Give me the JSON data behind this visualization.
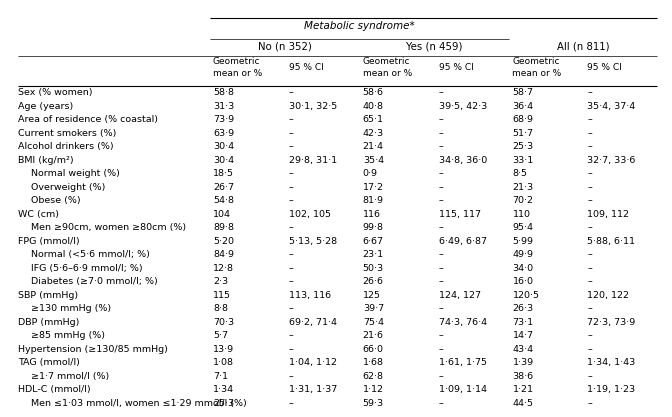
{
  "title": "Metabolic syndrome*",
  "group_labels": [
    "No (​n 352)",
    "Yes (​n 459)",
    "All (​n 811)"
  ],
  "rows": [
    {
      "label": "Sex (% women)",
      "indent": 0,
      "vals": [
        "58·8",
        "–",
        "58·6",
        "–",
        "58·7",
        "–"
      ]
    },
    {
      "label": "Age (years)",
      "indent": 0,
      "vals": [
        "31·3",
        "30·1, 32·5",
        "40·8",
        "39·5, 42·3",
        "36·4",
        "35·4, 37·4"
      ]
    },
    {
      "label": "Area of residence (% coastal)",
      "indent": 0,
      "vals": [
        "73·9",
        "–",
        "65·1",
        "–",
        "68·9",
        "–"
      ]
    },
    {
      "label": "Current smokers (%)",
      "indent": 0,
      "vals": [
        "63·9",
        "–",
        "42·3",
        "–",
        "51·7",
        "–"
      ]
    },
    {
      "label": "Alcohol drinkers (%)",
      "indent": 0,
      "vals": [
        "30·4",
        "–",
        "21·4",
        "–",
        "25·3",
        "–"
      ]
    },
    {
      "label": "BMI (kg/m²)",
      "indent": 0,
      "vals": [
        "30·4",
        "29·8, 31·1",
        "35·4",
        "34·8, 36·0",
        "33·1",
        "32·7, 33·6"
      ]
    },
    {
      "label": "Normal weight (%)",
      "indent": 1,
      "vals": [
        "18·5",
        "–",
        "0·9",
        "–",
        "8·5",
        "–"
      ]
    },
    {
      "label": "Overweight (%)",
      "indent": 1,
      "vals": [
        "26·7",
        "–",
        "17·2",
        "–",
        "21·3",
        "–"
      ]
    },
    {
      "label": "Obese (%)",
      "indent": 1,
      "vals": [
        "54·8",
        "–",
        "81·9",
        "–",
        "70·2",
        "–"
      ]
    },
    {
      "label": "WC (cm)",
      "indent": 0,
      "vals": [
        "104",
        "102, 105",
        "116",
        "115, 117",
        "110",
        "109, 112"
      ]
    },
    {
      "label": "Men ≥90cm, women ≥80cm (%)",
      "indent": 1,
      "vals": [
        "89·8",
        "–",
        "99·8",
        "–",
        "95·4",
        "–"
      ]
    },
    {
      "label": "FPG (mmol/l)",
      "indent": 0,
      "vals": [
        "5·20",
        "5·13, 5·28",
        "6·67",
        "6·49, 6·87",
        "5·99",
        "5·88, 6·11"
      ]
    },
    {
      "label": "Normal (<5·6 mmol/l; %)",
      "indent": 1,
      "vals": [
        "84·9",
        "–",
        "23·1",
        "–",
        "49·9",
        "–"
      ]
    },
    {
      "label": "IFG (5·6–6·9 mmol/l; %)",
      "indent": 1,
      "vals": [
        "12·8",
        "–",
        "50·3",
        "–",
        "34·0",
        "–"
      ]
    },
    {
      "label": "Diabetes (≥7·0 mmol/l; %)",
      "indent": 1,
      "vals": [
        "2·3",
        "–",
        "26·6",
        "–",
        "16·0",
        "–"
      ]
    },
    {
      "label": "SBP (mmHg)",
      "indent": 0,
      "vals": [
        "115",
        "113, 116",
        "125",
        "124, 127",
        "120·5",
        "120, 122"
      ]
    },
    {
      "label": "≥130 mmHg (%)",
      "indent": 1,
      "vals": [
        "8·8",
        "–",
        "39·7",
        "–",
        "26·3",
        "–"
      ]
    },
    {
      "label": "DBP (mmHg)",
      "indent": 0,
      "vals": [
        "70·3",
        "69·2, 71·4",
        "75·4",
        "74·3, 76·4",
        "73·1",
        "72·3, 73·9"
      ]
    },
    {
      "label": "≥85 mmHg (%)",
      "indent": 1,
      "vals": [
        "5·7",
        "–",
        "21·6",
        "–",
        "14·7",
        "–"
      ]
    },
    {
      "label": "Hypertension (≥130/85 mmHg)",
      "indent": 0,
      "vals": [
        "13·9",
        "–",
        "66·0",
        "–",
        "43·4",
        "–"
      ]
    },
    {
      "label": "TAG (mmol/l)",
      "indent": 0,
      "vals": [
        "1·08",
        "1·04, 1·12",
        "1·68",
        "1·61, 1·75",
        "1·39",
        "1·34, 1·43"
      ]
    },
    {
      "label": "≥1·7 mmol/l (%)",
      "indent": 1,
      "vals": [
        "7·1",
        "–",
        "62·8",
        "–",
        "38·6",
        "–"
      ]
    },
    {
      "label": "HDL-C (mmol/l)",
      "indent": 0,
      "vals": [
        "1·34",
        "1·31, 1·37",
        "1·12",
        "1·09, 1·14",
        "1·21",
        "1·19, 1·23"
      ]
    },
    {
      "label": "Men ≤1·03 mmol/l, women ≤1·29 mmol/l (%)",
      "indent": 1,
      "vals": [
        "25·3",
        "–",
        "59·3",
        "–",
        "44·5",
        "–"
      ]
    }
  ],
  "bg_color": "#ffffff",
  "text_color": "#000000",
  "line_color": "#000000",
  "font_size": 6.8,
  "header_font_size": 7.5
}
